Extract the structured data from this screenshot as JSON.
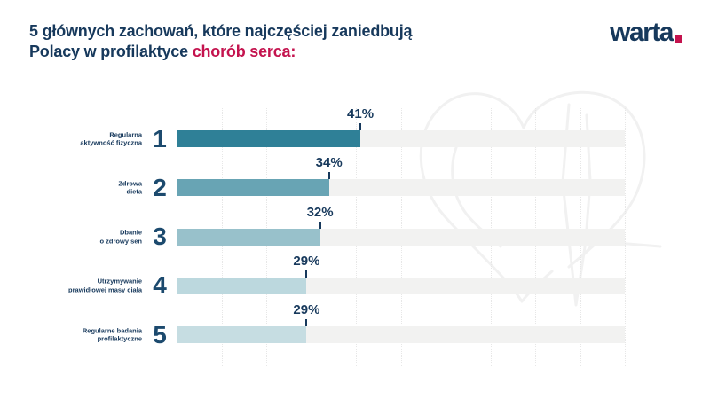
{
  "header": {
    "title_line1": "5 głównych zachowań, które najczęściej zaniedbują",
    "title_line2_prefix": "Polacy w profilaktyce ",
    "title_line2_highlight": "chorób serca:"
  },
  "logo": {
    "text": "warta"
  },
  "colors": {
    "navy": "#17395c",
    "red": "#c4134e",
    "track": "#f2f2f1",
    "axis": "#ccd8dc",
    "gridline": "#e7e7e7",
    "watermark": "#f1f1f1",
    "bar_colors": [
      "#2f8097",
      "#68a4b4",
      "#98c1cb",
      "#bcd8de",
      "#c6dde2"
    ]
  },
  "chart_data": {
    "type": "bar",
    "orientation": "horizontal",
    "title": "5 głównych zachowań, które najczęściej zaniedbują Polacy w profilaktyce chorób serca",
    "categories": [
      "Regularna\naktywność fizyczna",
      "Zdrowa\ndieta",
      "Dbanie\no zdrowy sen",
      "Utrzymywanie\nprawidłowej masy ciała",
      "Regularne badania\nprofilaktyczne"
    ],
    "ranks": [
      "1",
      "2",
      "3",
      "4",
      "5"
    ],
    "values": [
      41,
      34,
      32,
      29,
      29
    ],
    "value_labels": [
      "41%",
      "34%",
      "32%",
      "29%",
      "29%"
    ],
    "xlim": [
      0,
      100
    ],
    "grid": "vertical dotted lines every 10%",
    "legend": "none"
  }
}
